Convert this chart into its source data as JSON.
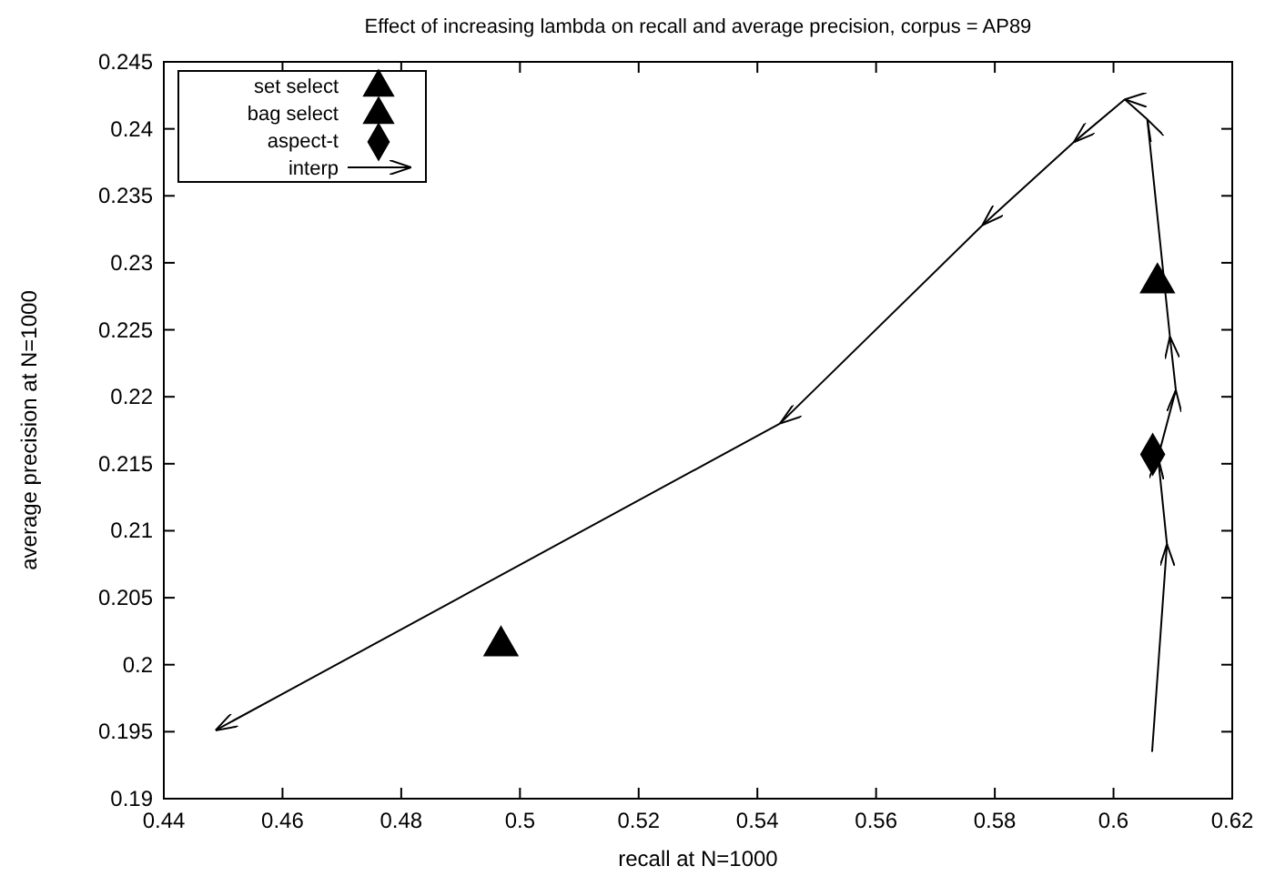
{
  "chart_data": {
    "type": "scatter",
    "title": "Effect of increasing lambda on recall and average precision, corpus = AP89",
    "xlabel": "recall at N=1000",
    "ylabel": "average precision at N=1000",
    "xlim": [
      0.44,
      0.62
    ],
    "xticks": [
      0.44,
      0.46,
      0.48,
      0.5,
      0.52,
      0.54,
      0.56,
      0.58,
      0.6,
      0.62
    ],
    "ylim": [
      0.19,
      0.245
    ],
    "yticks": [
      0.19,
      0.195,
      0.2,
      0.205,
      0.21,
      0.215,
      0.22,
      0.225,
      0.23,
      0.235,
      0.24,
      0.245
    ],
    "grid": false,
    "legend": "top left",
    "series": [
      {
        "name": "set select",
        "marker": "triangle",
        "color": "#000000",
        "x": [
          0.4968
        ],
        "values": [
          0.2014
        ]
      },
      {
        "name": "bag select",
        "marker": "triangle",
        "color": "#000000",
        "x": [
          0.6074
        ],
        "values": [
          0.2285
        ]
      },
      {
        "name": "aspect-t",
        "marker": "diamond",
        "color": "#000000",
        "x": [
          0.6066
        ],
        "values": [
          0.2157
        ]
      },
      {
        "name": "interp",
        "type": "line",
        "marker": "none",
        "color": "#000000",
        "x": [
          0.6065,
          0.609,
          0.6075,
          0.6105,
          0.6095,
          0.6057,
          0.6019,
          0.5933,
          0.5779,
          0.5438,
          0.4487
        ],
        "values": [
          0.1935,
          0.209,
          0.2155,
          0.2205,
          0.2245,
          0.2407,
          0.2422,
          0.239,
          0.2328,
          0.218,
          0.1951
        ]
      }
    ]
  }
}
